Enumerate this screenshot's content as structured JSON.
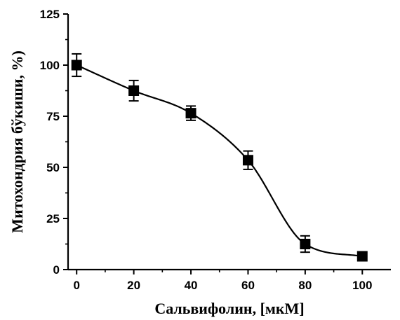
{
  "chart_data": {
    "type": "scatter",
    "title": "",
    "xlabel": "Сальвифолин, [мкМ]",
    "ylabel": "Митохондрия бўкиши, %)",
    "xlim": [
      -3,
      110
    ],
    "ylim": [
      0,
      125
    ],
    "x_ticks": [
      0,
      20,
      40,
      60,
      80,
      100
    ],
    "y_ticks": [
      0,
      25,
      50,
      75,
      100,
      125
    ],
    "x_tick_labels": [
      "0",
      "20",
      "40",
      "60",
      "80",
      "100"
    ],
    "y_tick_labels": [
      "0",
      "25",
      "50",
      "75",
      "100",
      "125"
    ],
    "grid": false,
    "legend": "none",
    "series": [
      {
        "marker": "square",
        "color": "#000000",
        "x": [
          0,
          20,
          40,
          60,
          80,
          100
        ],
        "y": [
          100,
          87.5,
          76.5,
          53.5,
          12.5,
          6.5
        ],
        "error": [
          5.5,
          5.0,
          3.5,
          4.5,
          4.0,
          2.0
        ]
      }
    ],
    "fit_curve": {
      "type": "sigmoid",
      "color": "#000000",
      "x_range": [
        0,
        100
      ]
    }
  }
}
